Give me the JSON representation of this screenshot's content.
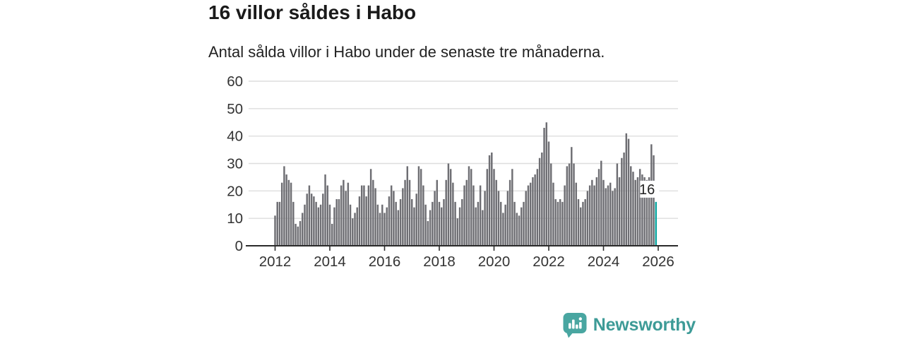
{
  "header": {
    "title": "16 villor såldes i Habo",
    "subtitle": "Antal sålda villor i Habo under de senaste tre månaderna."
  },
  "chart_data": {
    "type": "bar",
    "title": "16 villor såldes i Habo",
    "subtitle": "Antal sålda villor i Habo under de senaste tre månaderna.",
    "frequency": "monthly",
    "start": "2012-01",
    "end": "2025-12",
    "values": [
      11,
      16,
      16,
      23,
      29,
      26,
      24,
      23,
      16,
      8,
      7,
      9,
      12,
      15,
      19,
      22,
      19,
      18,
      16,
      14,
      15,
      19,
      26,
      22,
      15,
      8,
      14,
      17,
      17,
      22,
      24,
      20,
      23,
      15,
      10,
      12,
      14,
      18,
      22,
      22,
      18,
      22,
      28,
      24,
      21,
      15,
      12,
      15,
      12,
      14,
      18,
      22,
      20,
      16,
      13,
      17,
      21,
      24,
      29,
      24,
      17,
      14,
      19,
      29,
      28,
      22,
      15,
      9,
      13,
      16,
      20,
      24,
      16,
      14,
      17,
      24,
      30,
      28,
      23,
      16,
      10,
      14,
      17,
      22,
      24,
      29,
      28,
      22,
      14,
      16,
      22,
      13,
      20,
      28,
      33,
      34,
      28,
      24,
      20,
      16,
      12,
      15,
      20,
      24,
      28,
      16,
      12,
      11,
      14,
      16,
      20,
      22,
      23,
      25,
      26,
      28,
      32,
      34,
      43,
      45,
      38,
      30,
      23,
      17,
      16,
      17,
      16,
      22,
      29,
      30,
      36,
      30,
      23,
      17,
      14,
      16,
      17,
      20,
      22,
      24,
      22,
      25,
      28,
      31,
      24,
      21,
      22,
      23,
      20,
      21,
      30,
      25,
      32,
      34,
      41,
      39,
      29,
      27,
      24,
      25,
      28,
      26,
      25,
      24,
      25,
      37,
      33,
      16
    ],
    "highlight": {
      "index": 167,
      "value": 16,
      "label": "16",
      "color": "#0ba5a0"
    },
    "bar_color": "#6e6e73",
    "grid": true,
    "grid_color": "#dedede",
    "axis_color": "#2b2b2b",
    "tick_label_color": "#333333",
    "ylim": [
      0,
      60
    ],
    "yticks": [
      0,
      10,
      20,
      30,
      40,
      50,
      60
    ],
    "xticks": [
      2012,
      2014,
      2016,
      2018,
      2020,
      2022,
      2024,
      2026
    ],
    "legend": "none"
  },
  "footer": {
    "brand": "Newsworthy",
    "brand_color": "#3d9b97",
    "icon": "newsworthy-speech-bubble-bar-chart-icon"
  }
}
